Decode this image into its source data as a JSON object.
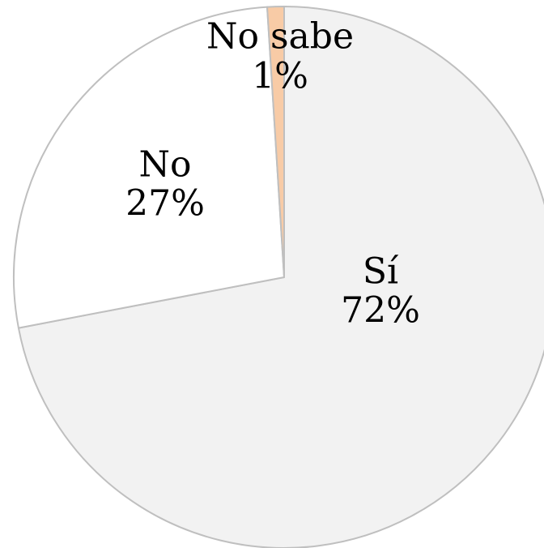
{
  "chart_data": {
    "type": "pie",
    "categories": [
      "Sí",
      "No",
      "No sabe"
    ],
    "values": [
      72,
      27,
      1
    ],
    "value_labels": [
      "72%",
      "27%",
      "1%"
    ],
    "colors": [
      "#f2f2f2",
      "#ffffff",
      "#f8cba6"
    ]
  }
}
